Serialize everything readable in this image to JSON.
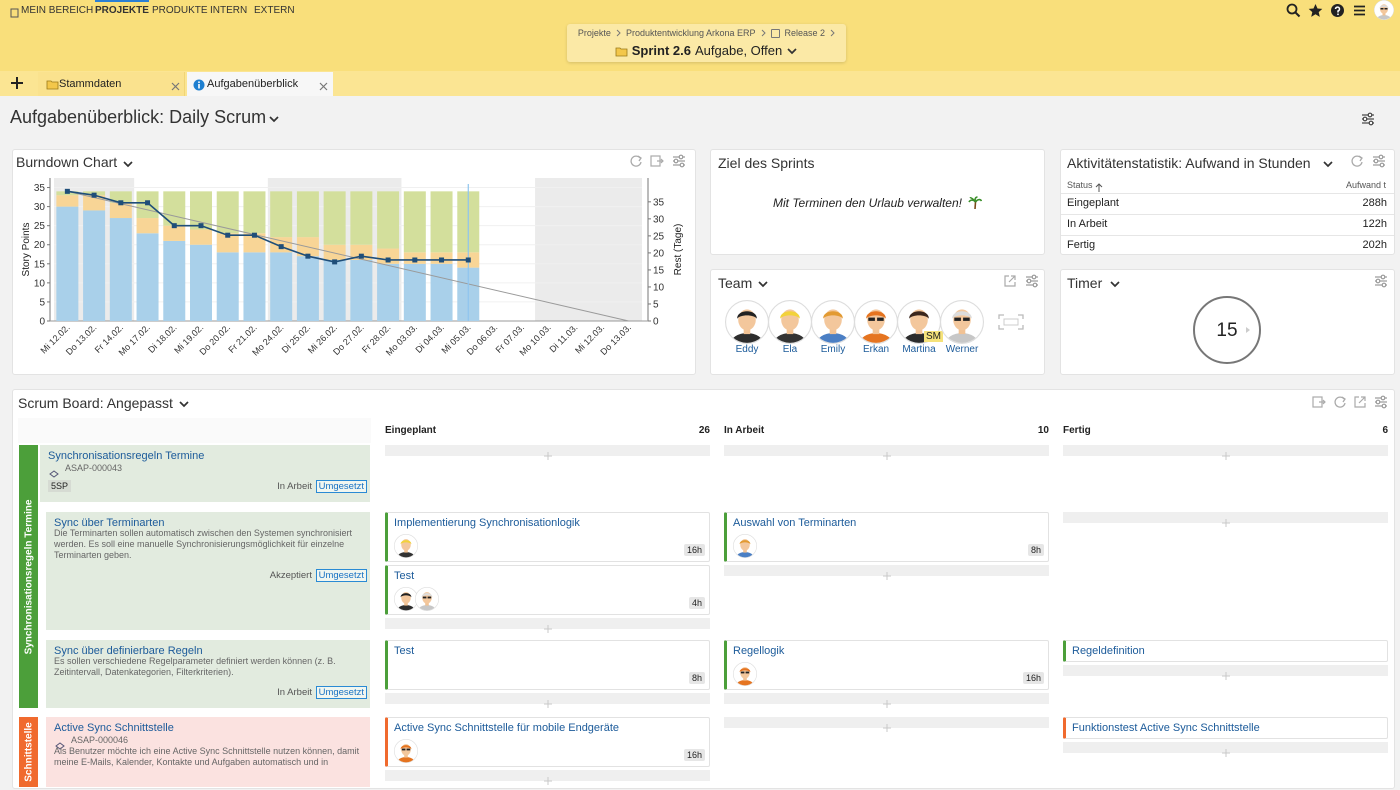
{
  "nav": [
    "MEIN BEREICH",
    "PROJEKTE",
    "PRODUKTE",
    "INTERN",
    "EXTERN"
  ],
  "breadcrumb": [
    "Projekte",
    "Produktentwicklung Arkona ERP",
    "Release 2"
  ],
  "sprint": {
    "name": "Sprint 2.6",
    "status": "Aufgabe, Offen"
  },
  "tabs": [
    "Stammdaten",
    "Aufgabenüberblick"
  ],
  "page_title": "Aufgabenüberblick: Daily Scrum",
  "chart_data": {
    "type": "bar",
    "stacked": true,
    "title": "Burndown Chart",
    "y_label": "Story Points",
    "y2_label": "Rest (Tage)",
    "categories": [
      "Mi 12.02.",
      "Do 13.02.",
      "Fr 14.02.",
      "Mo 17.02.",
      "Di 18.02.",
      "Mi 19.02.",
      "Do 20.02.",
      "Fr 21.02.",
      "Mo 24.02.",
      "Di 25.02.",
      "Mi 26.02.",
      "Do 27.02.",
      "Fr 28.02.",
      "Mo 03.03.",
      "Di 04.03.",
      "Mi 05.03.",
      "Do 06.03.",
      "Fr 07.03.",
      "Mo 10.03.",
      "Di 11.03.",
      "Mi 12.03.",
      "Do 13.03."
    ],
    "series": [
      {
        "color": "#a9d0ea",
        "values": [
          30,
          29,
          27,
          23,
          21,
          20,
          18,
          18,
          18,
          17,
          16,
          16,
          15,
          15,
          15,
          14,
          null,
          null,
          null,
          null,
          null,
          null
        ]
      },
      {
        "color": "#f8d596",
        "values": [
          3,
          4,
          4,
          4,
          4,
          4,
          5,
          5,
          4,
          5,
          4,
          4,
          4,
          3,
          3,
          4,
          null,
          null,
          null,
          null,
          null,
          null
        ]
      },
      {
        "color": "#d3df9c",
        "values": [
          1,
          1,
          3,
          7,
          9,
          10,
          11,
          11,
          12,
          12,
          14,
          14,
          15,
          16,
          16,
          16,
          null,
          null,
          null,
          null,
          null,
          null
        ]
      },
      {
        "type": "line",
        "color": "#1f4e79",
        "values": [
          34,
          33,
          31,
          31,
          25,
          25,
          22.5,
          22.5,
          19.5,
          17,
          15.5,
          17,
          16,
          16,
          16,
          16,
          null,
          null,
          null,
          null,
          null,
          null
        ]
      }
    ],
    "ideal": [
      34,
      0
    ],
    "ideal_color": "#9a9a9a",
    "ylim": [
      0,
      37.5
    ],
    "yticks": [
      0,
      5,
      10,
      15,
      20,
      25,
      30,
      35
    ],
    "y2lim": [
      0,
      42
    ],
    "y2ticks": [
      0,
      5,
      10,
      15,
      20,
      25,
      30,
      35
    ],
    "grid": true
  },
  "goal": {
    "title": "Ziel des Sprints",
    "text": "Mit Terminen den Urlaub verwalten!"
  },
  "stats": {
    "title": "Aktivitätenstatistik: Aufwand in Stunden",
    "columns": [
      "Status",
      "Aufwand t"
    ],
    "rows": [
      [
        "Eingeplant",
        "288h"
      ],
      [
        "In Arbeit",
        "122h"
      ],
      [
        "Fertig",
        "202h"
      ]
    ]
  },
  "team": {
    "title": "Team",
    "members": [
      {
        "name": "Eddy"
      },
      {
        "name": "Ela"
      },
      {
        "name": "Emily"
      },
      {
        "name": "Erkan"
      },
      {
        "name": "Martina",
        "badge": "SM"
      },
      {
        "name": "Werner"
      }
    ]
  },
  "timer": {
    "title": "Timer",
    "value": 15
  },
  "board": {
    "title": "Scrum Board: Angepasst",
    "columns": [
      {
        "name": "Eingeplant",
        "count": 26
      },
      {
        "name": "In Arbeit",
        "count": 10
      },
      {
        "name": "Fertig",
        "count": 6
      }
    ],
    "lanes": [
      {
        "label": "Synchronisationsregeln Termine",
        "stories": [
          {
            "title": "Synchronisationsregeln Termine",
            "id": "ASAP-000043",
            "points": "5SP",
            "status": "In Arbeit",
            "tag": "Umgesetzt",
            "tasks": [
              [],
              [],
              []
            ]
          },
          {
            "title": "Sync über Terminarten",
            "description": "Die Terminarten sollen automatisch zwischen den Systemen synchronisiert werden. Es soll eine manuelle Synchronisierungsmöglichkeit für einzelne Terminarten geben.",
            "status": "Akzeptiert",
            "tag": "Umgesetzt",
            "tasks": [
              [
                {
                  "title": "Implementierung Synchronisationlogik",
                  "hours": "16h"
                },
                {
                  "title": "Test",
                  "hours": "4h"
                }
              ],
              [
                {
                  "title": "Auswahl von Terminarten",
                  "hours": "8h"
                }
              ],
              []
            ]
          },
          {
            "title": "Sync über definierbare Regeln",
            "description": "Es sollen verschiedene Regelparameter definiert werden können (z. B. Zeitintervall, Datenkategorien, Filterkriterien).",
            "status": "In Arbeit",
            "tag": "Umgesetzt",
            "tasks": [
              [
                {
                  "title": "Test",
                  "hours": "8h"
                }
              ],
              [
                {
                  "title": "Regellogik",
                  "hours": "16h"
                }
              ],
              [
                {
                  "title": "Regeldefinition"
                }
              ]
            ]
          }
        ]
      },
      {
        "label": "Schnittstelle",
        "stories": [
          {
            "title": "Active Sync Schnittstelle",
            "id": "ASAP-000046",
            "description": "Als Benutzer möchte ich eine Active Sync Schnittstelle nutzen können, damit meine E-Mails, Kalender, Kontakte und Aufgaben automatisch und in",
            "tasks": [
              [
                {
                  "title": "Active Sync Schnittstelle für mobile Endgeräte",
                  "hours": "16h"
                }
              ],
              [],
              [
                {
                  "title": "Funktionstest Active Sync Schnittstelle"
                }
              ]
            ]
          }
        ]
      }
    ]
  }
}
